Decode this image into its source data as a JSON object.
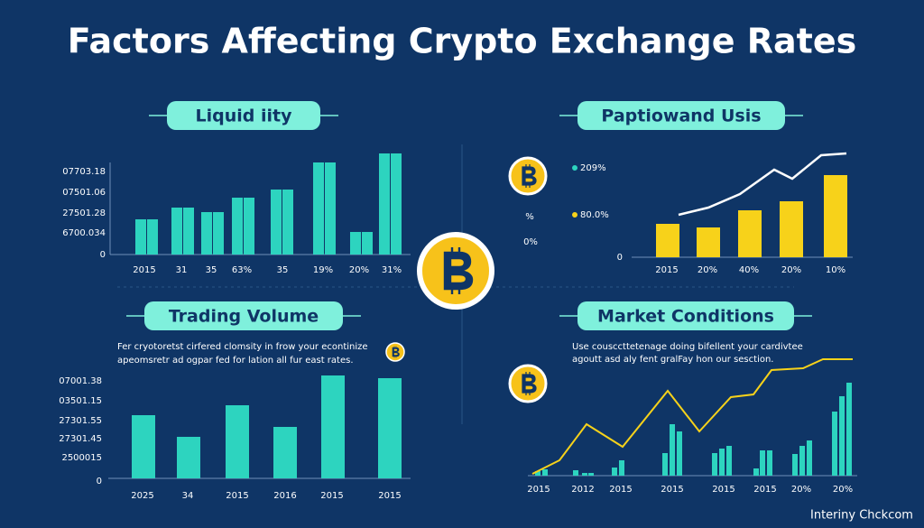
{
  "title": "Factors Affecting Crypto Exchange Rates",
  "footer": "Interiny Chckcom",
  "panels": [
    {
      "heading": "Liquid iity",
      "y_labels": [
        "07703.18",
        "07501.06",
        "27501.28",
        "6700.034",
        "0"
      ],
      "x_labels": [
        "2015",
        "31",
        "35",
        "63%",
        "35",
        "19%",
        "20%",
        "31%"
      ]
    },
    {
      "heading": "Paptiowand Usis",
      "side_labels": [
        "%",
        "0%"
      ],
      "legend": [
        "209%",
        "80.0%"
      ],
      "y_labels": [
        "0"
      ],
      "x_labels": [
        "2015",
        "20%",
        "40%",
        "20%",
        "10%"
      ]
    },
    {
      "heading": "Trading Volume",
      "note": [
        "Fer cryotoretst cirfered clomsity in frow your econtinize",
        "apeomsretr ad ogpar fed for lation all fur east rates."
      ],
      "y_labels": [
        "07001.38",
        "03501.15",
        "27301.55",
        "27301.45",
        "2500015",
        "0"
      ],
      "x_labels": [
        "2025",
        "34",
        "2015",
        "2016",
        "2015",
        "2015"
      ]
    },
    {
      "heading": "Market Conditions",
      "note": [
        "Use cousccttetenage doing bifellent your cardivtee",
        "agoutt asd aly fent gralFay hon our sesction."
      ],
      "x_labels": [
        "2015",
        "2012",
        "2015",
        "2015",
        "2015",
        "2015",
        "20%",
        "20%"
      ]
    }
  ]
}
